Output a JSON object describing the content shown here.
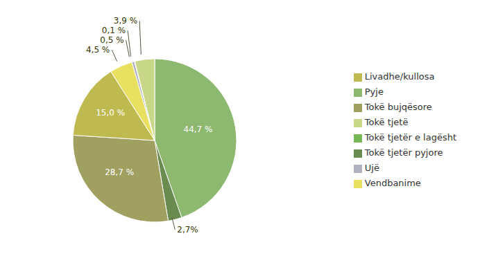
{
  "chart_data": {
    "type": "pie",
    "categories": [
      "Pyje",
      "Tokë tjetër pyjore",
      "Tokë bujqësore",
      "Livadhe/kullosa",
      "Vendbanime",
      "Ujë",
      "Tokë tjetër e lagësht",
      "Tokë tjetë"
    ],
    "values": [
      44.7,
      2.7,
      28.7,
      15.0,
      4.5,
      0.5,
      0.1,
      3.9
    ],
    "value_labels": [
      "44,7 %",
      "2,7%",
      "28,7 %",
      "15,0 %",
      "4,5 %",
      "0,5 %",
      "0,1 %",
      "3,9 %"
    ],
    "colors": [
      "#8db870",
      "#6a8c50",
      "#a0a060",
      "#bfba50",
      "#e8e060",
      "#b0b0c0",
      "#78b858",
      "#c8d888"
    ],
    "data_labels": true,
    "legend": "right"
  }
}
